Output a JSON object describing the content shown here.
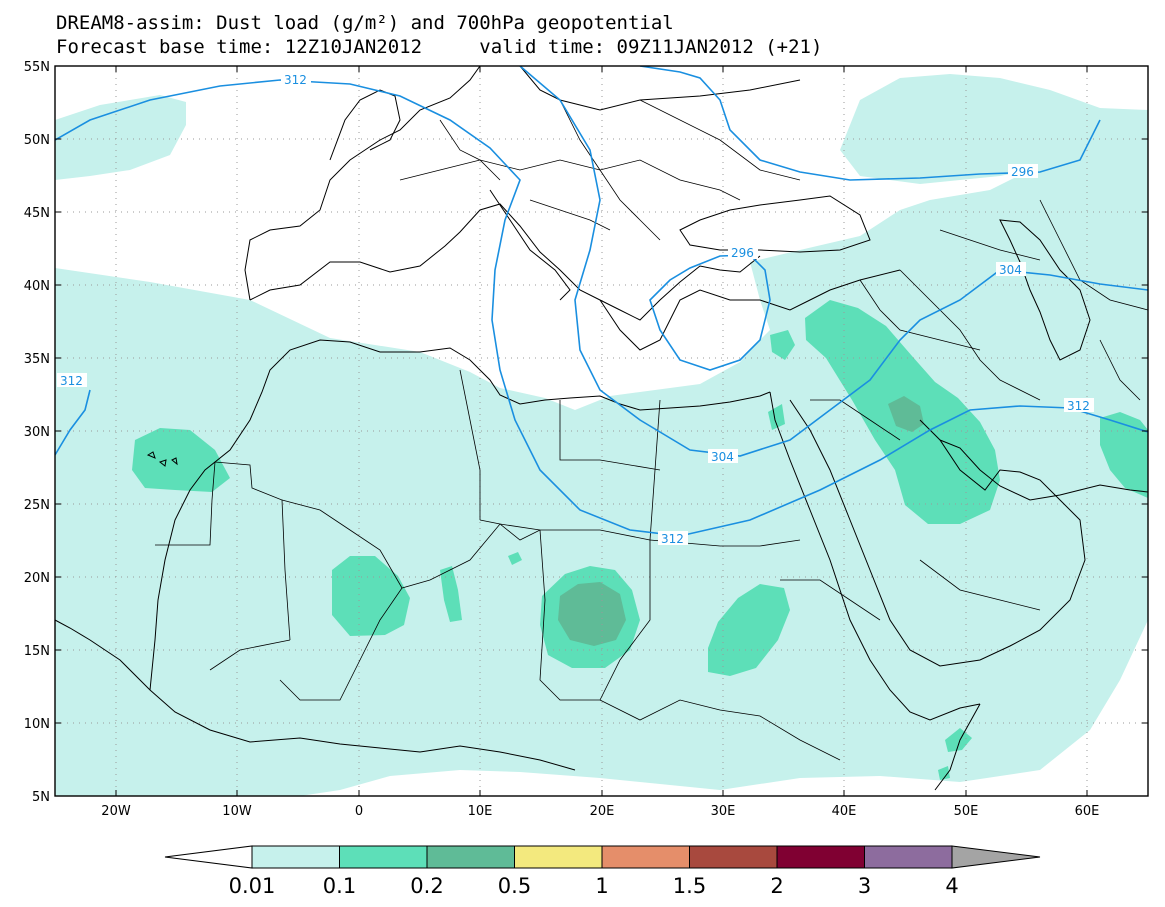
{
  "title": {
    "line1": "DREAM8-assim: Dust load (g/m²) and 700hPa geopotential",
    "base_label": "Forecast base time: 12Z10JAN2012",
    "valid_label": "valid time: 09Z11JAN2012 (+21)"
  },
  "map": {
    "lon_range": [
      -25,
      65
    ],
    "lat_range": [
      5,
      55
    ],
    "lat_ticks": [
      "55N",
      "50N",
      "45N",
      "40N",
      "35N",
      "30N",
      "25N",
      "20N",
      "15N",
      "10N",
      "5N"
    ],
    "lon_ticks": [
      "20W",
      "10W",
      "0",
      "10E",
      "20E",
      "30E",
      "40E",
      "50E",
      "60E"
    ],
    "contour_labels": [
      "312",
      "296",
      "304",
      "296",
      "304",
      "312",
      "312",
      "312"
    ],
    "colors": {
      "land_border": "#000000",
      "contour": "#1a8fe0",
      "dust_0_01": "#c6f1ec",
      "dust_0_1": "#5ddfb8",
      "dust_0_2": "#5fbb97"
    }
  },
  "colorbar": {
    "labels": [
      "0.01",
      "0.1",
      "0.2",
      "0.5",
      "1",
      "1.5",
      "2",
      "3",
      "4"
    ],
    "colors": [
      "#c6f1ec",
      "#5ddfb8",
      "#5fbb97",
      "#f3e97e",
      "#e58e6a",
      "#a8493e",
      "#800032",
      "#8d6c9e",
      "#a4a4a4"
    ]
  }
}
